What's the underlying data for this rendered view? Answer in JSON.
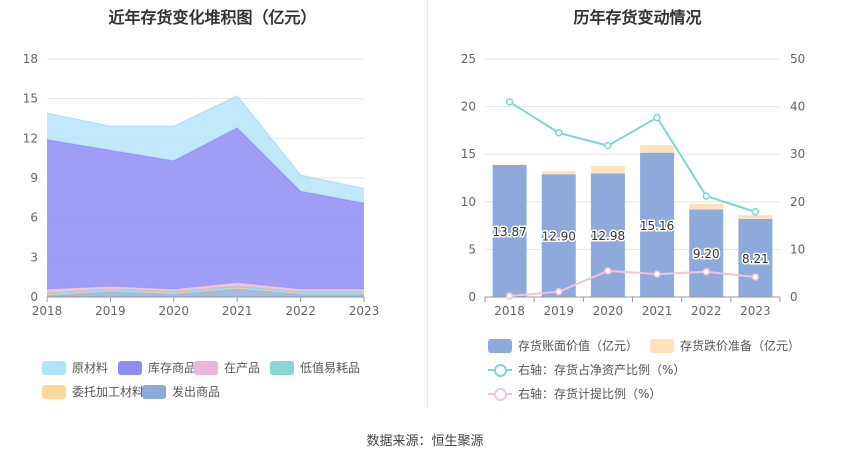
{
  "source": "数据来源：恒生聚源",
  "chart_data": [
    {
      "type": "area",
      "title": "近年存货变化堆积图（亿元）",
      "x": [
        "2018",
        "2019",
        "2020",
        "2021",
        "2022",
        "2023"
      ],
      "ylim": [
        0,
        18
      ],
      "yticks": [
        0,
        3,
        6,
        9,
        12,
        15,
        18
      ],
      "series": [
        {
          "name": "发出商品",
          "color": "#8eaadb",
          "values": [
            0.2,
            0.5,
            0.3,
            0.7,
            0.3,
            0.3
          ]
        },
        {
          "name": "委托加工材料",
          "color": "#fcd79a",
          "values": [
            0.0,
            0.0,
            0.0,
            0.0,
            0.0,
            0.0
          ]
        },
        {
          "name": "低值易耗品",
          "color": "#8ad8d6",
          "values": [
            0.1,
            0.1,
            0.1,
            0.1,
            0.1,
            0.1
          ]
        },
        {
          "name": "在产品",
          "color": "#e7b6d9",
          "values": [
            0.3,
            0.2,
            0.2,
            0.3,
            0.2,
            0.2
          ]
        },
        {
          "name": "库存商品",
          "color": "#8f8cf5",
          "values": [
            11.3,
            10.3,
            9.7,
            11.7,
            7.4,
            6.5
          ]
        },
        {
          "name": "原材料",
          "color": "#b2e3fa",
          "values": [
            2.0,
            1.8,
            2.6,
            2.4,
            1.2,
            1.1
          ]
        }
      ]
    },
    {
      "type": "bar",
      "title": "历年存货变动情况",
      "categories": [
        "2018",
        "2019",
        "2020",
        "2021",
        "2022",
        "2023"
      ],
      "ylim": [
        0,
        25
      ],
      "yticks": [
        0,
        5,
        10,
        15,
        20,
        25
      ],
      "y2lim": [
        0,
        50
      ],
      "y2ticks": [
        0,
        10,
        20,
        30,
        40,
        50
      ],
      "series": [
        {
          "name": "存货账面价值（亿元）",
          "kind": "bar",
          "axis": "left",
          "color": "#8eaadb",
          "values": [
            13.87,
            12.9,
            12.98,
            15.16,
            9.2,
            8.21
          ],
          "labels": [
            "13.87",
            "12.90",
            "12.98",
            "15.16",
            "9.20",
            "8.21"
          ]
        },
        {
          "name": "存货跌价准备（亿元）",
          "kind": "bar",
          "axis": "left",
          "color": "#fce3bc",
          "values": [
            0.05,
            0.3,
            0.8,
            0.8,
            0.6,
            0.4
          ]
        },
        {
          "name": "右轴：存货占净资产比例（%）",
          "kind": "line",
          "axis": "right",
          "color": "#80d4d6",
          "values": [
            41.0,
            34.5,
            31.8,
            37.7,
            21.2,
            17.9
          ]
        },
        {
          "name": "右轴：存货计提比例（%）",
          "kind": "line",
          "axis": "right",
          "color": "#f0c3de",
          "values": [
            0.2,
            1.1,
            5.5,
            4.8,
            5.3,
            4.2
          ]
        }
      ]
    }
  ]
}
